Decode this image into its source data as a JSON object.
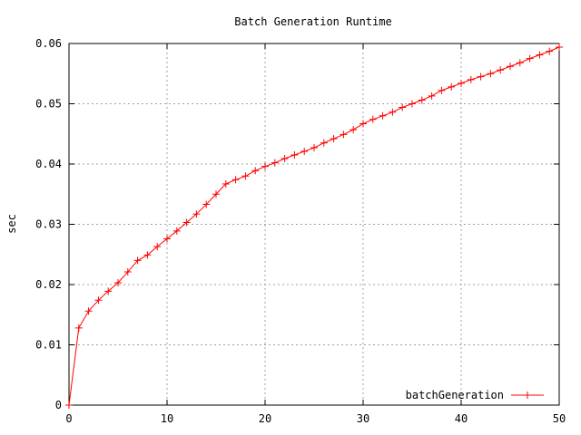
{
  "chart_data": {
    "type": "line",
    "title": "Batch Generation Runtime",
    "xlabel": "",
    "ylabel": "sec",
    "xlim": [
      0,
      50
    ],
    "ylim": [
      0,
      0.06
    ],
    "grid": true,
    "legend_position": "bottom-right",
    "x_ticks": [
      0,
      10,
      20,
      30,
      40,
      50
    ],
    "x_tick_labels": [
      "0",
      "10",
      "20",
      "30",
      "40",
      "50"
    ],
    "y_ticks": [
      0,
      0.01,
      0.02,
      0.03,
      0.04,
      0.05,
      0.06
    ],
    "y_tick_labels": [
      "0",
      "0.01",
      "0.02",
      "0.03",
      "0.04",
      "0.05",
      "0.06"
    ],
    "series": [
      {
        "name": "batchGeneration",
        "color": "#ff0000",
        "marker": "plus",
        "x": [
          0,
          1,
          2,
          3,
          4,
          5,
          6,
          7,
          8,
          9,
          10,
          11,
          12,
          13,
          14,
          15,
          16,
          17,
          18,
          19,
          20,
          21,
          22,
          23,
          24,
          25,
          26,
          27,
          28,
          29,
          30,
          31,
          32,
          33,
          34,
          35,
          36,
          37,
          38,
          39,
          40,
          41,
          42,
          43,
          44,
          45,
          46,
          47,
          48,
          49,
          50
        ],
        "y": [
          0.0,
          0.0128,
          0.0156,
          0.0174,
          0.0189,
          0.0203,
          0.0221,
          0.024,
          0.0249,
          0.0263,
          0.0276,
          0.0289,
          0.0303,
          0.0317,
          0.0333,
          0.035,
          0.0367,
          0.0374,
          0.038,
          0.0389,
          0.0396,
          0.0402,
          0.0409,
          0.0415,
          0.0421,
          0.0427,
          0.0435,
          0.0442,
          0.0449,
          0.0457,
          0.0467,
          0.0474,
          0.048,
          0.0486,
          0.0494,
          0.05,
          0.0506,
          0.0513,
          0.0522,
          0.0528,
          0.0534,
          0.054,
          0.0545,
          0.055,
          0.0556,
          0.0562,
          0.0568,
          0.0575,
          0.0581,
          0.0587,
          0.0594
        ]
      }
    ]
  }
}
